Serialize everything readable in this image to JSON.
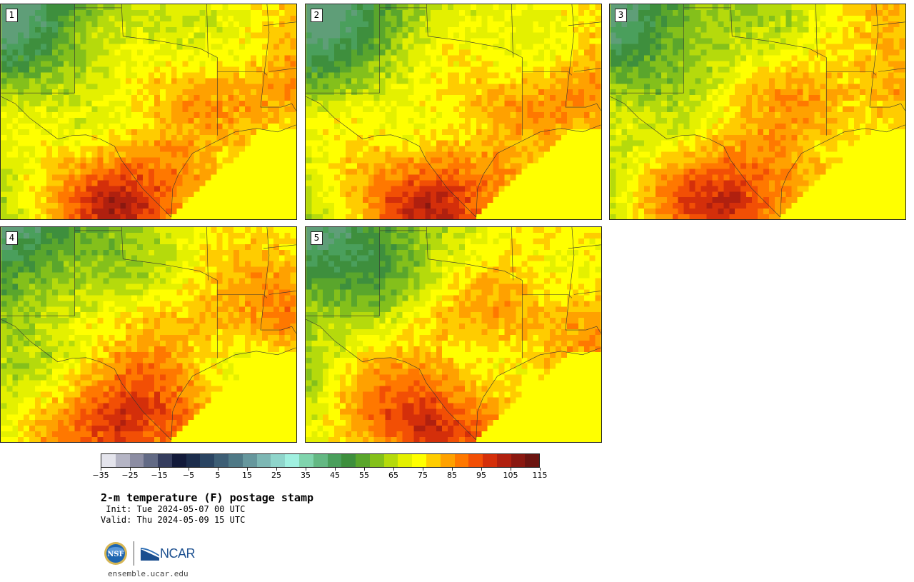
{
  "title": "2-m temperature (F) postage stamp",
  "init": " Init: Tue 2024-05-07 00 UTC",
  "valid": "Valid: Thu 2024-05-09 15 UTC",
  "website": "ensemble.ucar.edu",
  "logos": {
    "nsf": "NSF",
    "ncar": "NCAR"
  },
  "panels": [
    {
      "number": "1",
      "seed": 11
    },
    {
      "number": "2",
      "seed": 23
    },
    {
      "number": "3",
      "seed": 37
    },
    {
      "number": "4",
      "seed": 41
    },
    {
      "number": "5",
      "seed": 59
    }
  ],
  "colorbar": {
    "colors": [
      "#e4e4ec",
      "#b5b5c5",
      "#8c8da3",
      "#626a85",
      "#353d5e",
      "#121a3a",
      "#1c2d4c",
      "#2a4462",
      "#3d5e75",
      "#4f7986",
      "#66979d",
      "#7db7b4",
      "#8fd5cb",
      "#a0f0e0",
      "#80d4ad",
      "#64b883",
      "#4a9f5c",
      "#3e8f3d",
      "#5aa62c",
      "#84c01b",
      "#b5da0c",
      "#e4f000",
      "#ffff00",
      "#ffcc00",
      "#ffa100",
      "#ff7800",
      "#f24f05",
      "#d42f0a",
      "#b0200f",
      "#8a1810",
      "#6b1410"
    ],
    "ticks": [
      "−35",
      "−25",
      "−15",
      "−5",
      "5",
      "15",
      "25",
      "35",
      "45",
      "55",
      "65",
      "75",
      "85",
      "95",
      "105",
      "115"
    ]
  }
}
